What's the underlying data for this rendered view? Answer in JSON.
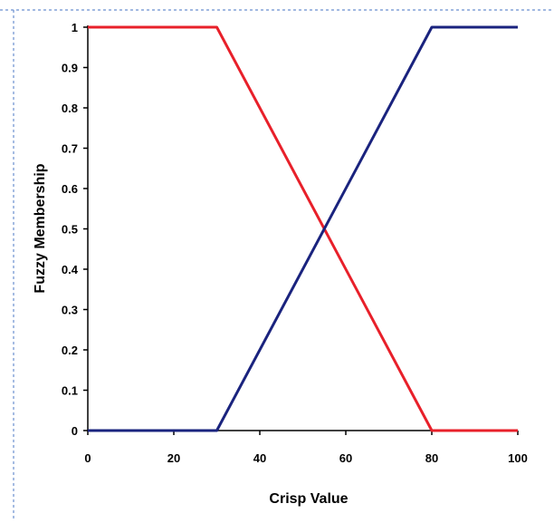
{
  "chart_data": {
    "type": "line",
    "title": "",
    "xlabel": "Crisp Value",
    "ylabel": "Fuzzy Membership",
    "xlim": [
      0,
      100
    ],
    "ylim": [
      0,
      1
    ],
    "x_ticks": [
      "0",
      "20",
      "40",
      "60",
      "80",
      "100"
    ],
    "y_ticks": [
      "0",
      "0.1",
      "0.2",
      "0.3",
      "0.4",
      "0.5",
      "0.6",
      "0.7",
      "0.8",
      "0.9",
      "1"
    ],
    "grid": false,
    "legend": "none",
    "series": [
      {
        "color": "#e8202a",
        "points": [
          [
            0,
            1
          ],
          [
            30,
            1
          ],
          [
            80,
            0
          ],
          [
            100,
            0
          ]
        ]
      },
      {
        "color": "#1a237e",
        "points": [
          [
            0,
            0
          ],
          [
            30,
            0
          ],
          [
            80,
            1
          ],
          [
            100,
            1
          ]
        ]
      }
    ]
  }
}
